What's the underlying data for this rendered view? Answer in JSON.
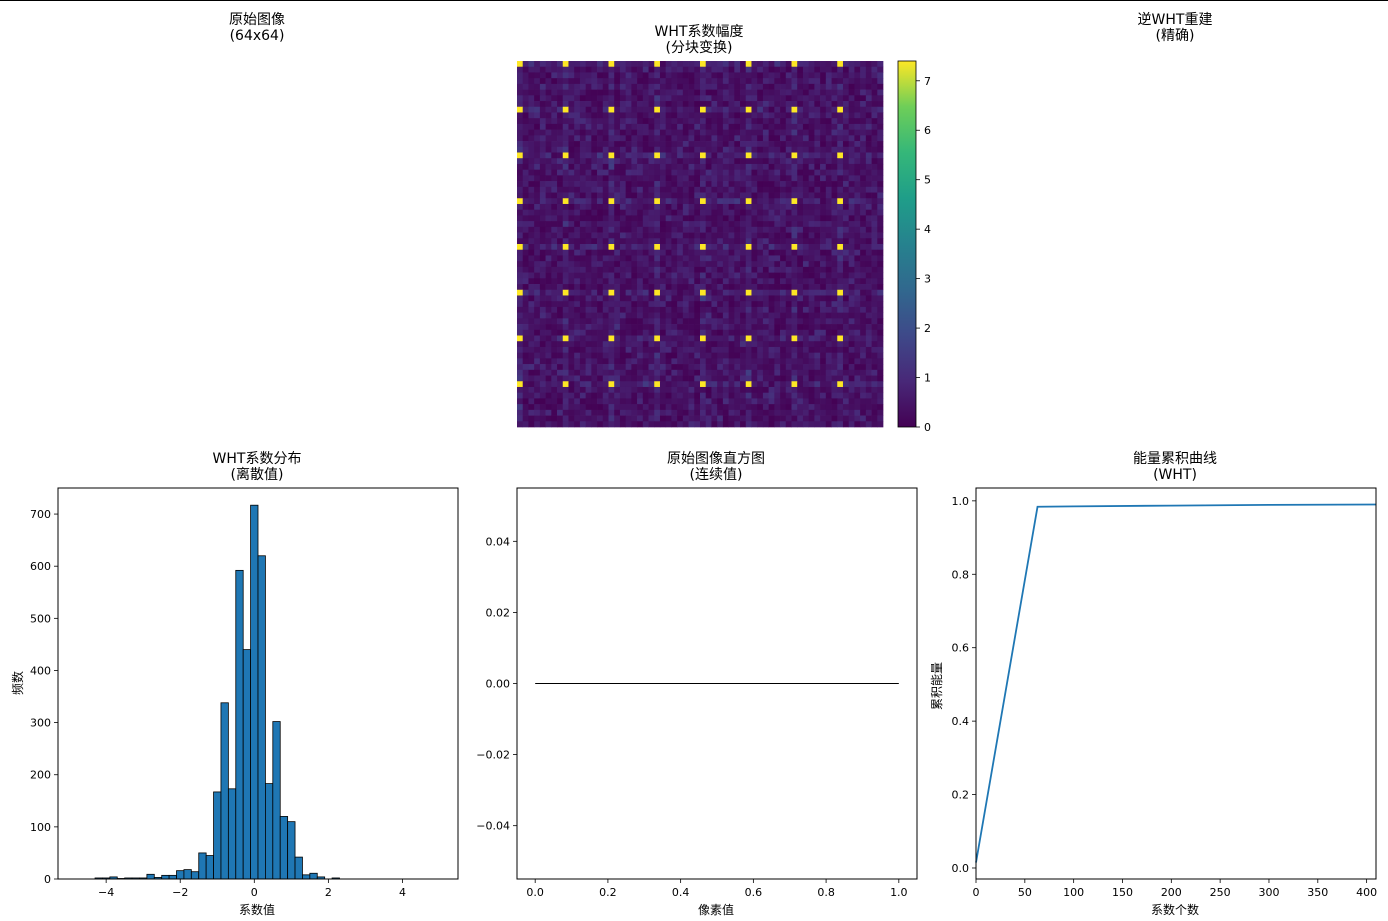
{
  "chart_data": [
    {
      "type": "heatmap",
      "id": "orig",
      "title": [
        "原始图像",
        "(64x64)"
      ],
      "axis": "off"
    },
    {
      "type": "heatmap",
      "id": "wht",
      "title": [
        "WHT系数幅度",
        "(分块变换)"
      ],
      "axis": "off",
      "grid_size": [
        64,
        64
      ],
      "block_size": 8,
      "colormap": "viridis",
      "colorbar": {
        "ticks": [
          0,
          1,
          2,
          3,
          4,
          5,
          6,
          7
        ],
        "vmin": 0,
        "vmax": 7.4
      },
      "dc_value": 7.4,
      "background_range": [
        0,
        1.2
      ]
    },
    {
      "type": "heatmap",
      "id": "recon",
      "title": [
        "逆WHT重建",
        "(精确)"
      ],
      "axis": "off"
    },
    {
      "type": "bar",
      "id": "hist_wht",
      "title": [
        "WHT系数分布",
        "(离散值)"
      ],
      "xlabel": "系数值",
      "ylabel": "频数",
      "xlim": [
        -5.3,
        5.5
      ],
      "ylim": [
        0,
        750
      ],
      "xticks": [
        -4,
        -2,
        0,
        2,
        4
      ],
      "yticks": [
        0,
        100,
        200,
        300,
        400,
        500,
        600,
        700
      ],
      "bin_width": 0.2,
      "bins": [
        {
          "x": -4.2,
          "v": 2
        },
        {
          "x": -4.0,
          "v": 2
        },
        {
          "x": -3.8,
          "v": 4
        },
        {
          "x": -3.6,
          "v": 1
        },
        {
          "x": -3.4,
          "v": 2
        },
        {
          "x": -3.2,
          "v": 2
        },
        {
          "x": -3.0,
          "v": 2
        },
        {
          "x": -2.8,
          "v": 9
        },
        {
          "x": -2.6,
          "v": 3
        },
        {
          "x": -2.4,
          "v": 7
        },
        {
          "x": -2.2,
          "v": 7
        },
        {
          "x": -2.0,
          "v": 16
        },
        {
          "x": -1.8,
          "v": 18
        },
        {
          "x": -1.6,
          "v": 14
        },
        {
          "x": -1.4,
          "v": 50
        },
        {
          "x": -1.2,
          "v": 45
        },
        {
          "x": -1.0,
          "v": 167
        },
        {
          "x": -0.8,
          "v": 338
        },
        {
          "x": -0.6,
          "v": 173
        },
        {
          "x": -0.4,
          "v": 592
        },
        {
          "x": -0.2,
          "v": 440
        },
        {
          "x": 0.0,
          "v": 717
        },
        {
          "x": 0.2,
          "v": 620
        },
        {
          "x": 0.4,
          "v": 183
        },
        {
          "x": 0.6,
          "v": 302
        },
        {
          "x": 0.8,
          "v": 120
        },
        {
          "x": 1.0,
          "v": 110
        },
        {
          "x": 1.2,
          "v": 42
        },
        {
          "x": 1.4,
          "v": 8
        },
        {
          "x": 1.6,
          "v": 11
        },
        {
          "x": 1.8,
          "v": 4
        },
        {
          "x": 2.0,
          "v": 0
        },
        {
          "x": 2.2,
          "v": 2
        }
      ],
      "baseline_range": [
        -5.0,
        5.0
      ],
      "bar_color": "#1f77b4"
    },
    {
      "type": "line",
      "id": "hist_orig",
      "title": [
        "原始图像直方图",
        "(连续值)"
      ],
      "xlabel": "像素值",
      "ylabel": "",
      "xlim": [
        -0.05,
        1.05
      ],
      "ylim": [
        -0.055,
        0.055
      ],
      "xticks": [
        0.0,
        0.2,
        0.4,
        0.6,
        0.8,
        1.0
      ],
      "xticklabels": [
        "0.0",
        "0.2",
        "0.4",
        "0.6",
        "0.8",
        "1.0"
      ],
      "yticks": [
        -0.04,
        -0.02,
        0.0,
        0.02,
        0.04
      ],
      "yticklabels": [
        "-0.04",
        "-0.02",
        "0.00",
        "0.02",
        "0.04"
      ],
      "series": [
        {
          "x": [
            0.0,
            1.0
          ],
          "y": [
            0.0,
            0.0
          ],
          "color": "#000000"
        }
      ]
    },
    {
      "type": "line",
      "id": "energy",
      "title": [
        "能量累积曲线",
        "(WHT)"
      ],
      "xlabel": "系数个数",
      "ylabel": "累积能量",
      "xlim": [
        0,
        409.6
      ],
      "ylim": [
        -0.03,
        1.035
      ],
      "xticks": [
        0,
        50,
        100,
        150,
        200,
        250,
        300,
        350,
        400
      ],
      "yticks": [
        0.0,
        0.2,
        0.4,
        0.6,
        0.8,
        1.0
      ],
      "yticklabels": [
        "0.0",
        "0.2",
        "0.4",
        "0.6",
        "0.8",
        "1.0"
      ],
      "series": [
        {
          "x": [
            0,
            63,
            100,
            200,
            300,
            409.6
          ],
          "y": [
            0.015,
            0.984,
            0.985,
            0.987,
            0.989,
            0.99
          ],
          "color": "#1f77b4"
        }
      ]
    }
  ]
}
